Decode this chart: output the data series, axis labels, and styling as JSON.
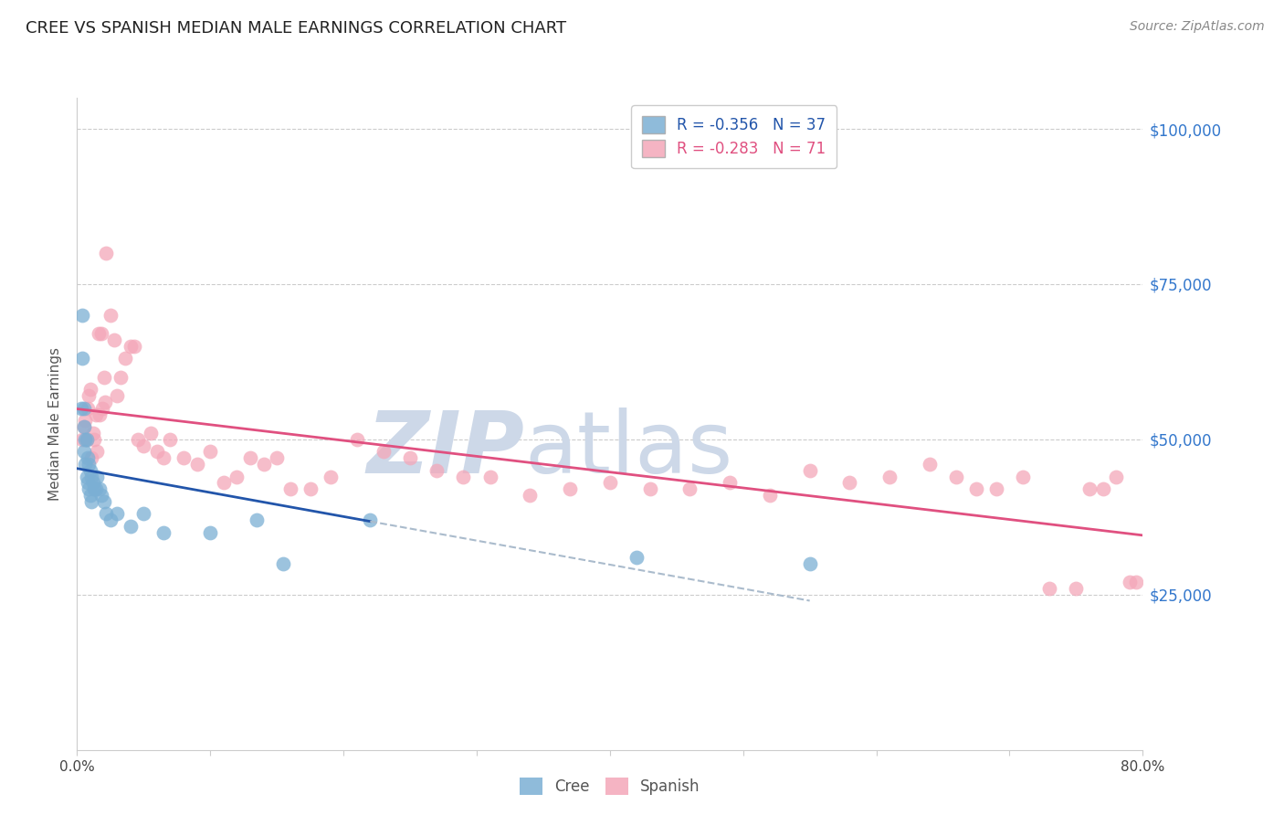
{
  "title": "CREE VS SPANISH MEDIAN MALE EARNINGS CORRELATION CHART",
  "source": "Source: ZipAtlas.com",
  "ylabel": "Median Male Earnings",
  "xmin": 0.0,
  "xmax": 0.8,
  "ymin": 0,
  "ymax": 105000,
  "yticks": [
    0,
    25000,
    50000,
    75000,
    100000
  ],
  "ytick_labels": [
    "",
    "$25,000",
    "$50,000",
    "$75,000",
    "$100,000"
  ],
  "xticks": [
    0.0,
    0.1,
    0.2,
    0.3,
    0.4,
    0.5,
    0.6,
    0.7,
    0.8
  ],
  "cree_R": -0.356,
  "cree_N": 37,
  "spanish_R": -0.283,
  "spanish_N": 71,
  "cree_color": "#7bafd4",
  "spanish_color": "#f4a7b9",
  "cree_line_color": "#2255aa",
  "spanish_line_color": "#e05080",
  "dash_color": "#aabbcc",
  "watermark_color": "#cdd8e8",
  "cree_x": [
    0.003,
    0.004,
    0.004,
    0.005,
    0.005,
    0.005,
    0.006,
    0.006,
    0.007,
    0.007,
    0.008,
    0.008,
    0.009,
    0.009,
    0.01,
    0.01,
    0.011,
    0.011,
    0.012,
    0.013,
    0.014,
    0.015,
    0.017,
    0.018,
    0.02,
    0.022,
    0.025,
    0.03,
    0.04,
    0.05,
    0.065,
    0.1,
    0.135,
    0.155,
    0.22,
    0.42,
    0.55
  ],
  "cree_y": [
    55000,
    70000,
    63000,
    55000,
    52000,
    48000,
    50000,
    46000,
    50000,
    44000,
    47000,
    43000,
    46000,
    42000,
    45000,
    41000,
    44000,
    40000,
    43000,
    42000,
    42000,
    44000,
    42000,
    41000,
    40000,
    38000,
    37000,
    38000,
    36000,
    38000,
    35000,
    35000,
    37000,
    30000,
    37000,
    31000,
    30000
  ],
  "spanish_x": [
    0.004,
    0.005,
    0.006,
    0.007,
    0.008,
    0.009,
    0.01,
    0.011,
    0.012,
    0.013,
    0.014,
    0.015,
    0.016,
    0.017,
    0.018,
    0.019,
    0.02,
    0.021,
    0.022,
    0.025,
    0.028,
    0.03,
    0.033,
    0.036,
    0.04,
    0.043,
    0.046,
    0.05,
    0.055,
    0.06,
    0.065,
    0.07,
    0.08,
    0.09,
    0.1,
    0.11,
    0.12,
    0.13,
    0.14,
    0.15,
    0.16,
    0.175,
    0.19,
    0.21,
    0.23,
    0.25,
    0.27,
    0.29,
    0.31,
    0.34,
    0.37,
    0.4,
    0.43,
    0.46,
    0.49,
    0.52,
    0.55,
    0.58,
    0.61,
    0.64,
    0.66,
    0.675,
    0.69,
    0.71,
    0.73,
    0.75,
    0.76,
    0.77,
    0.78,
    0.79,
    0.795
  ],
  "spanish_y": [
    50000,
    52000,
    53000,
    50000,
    55000,
    57000,
    58000,
    47000,
    51000,
    50000,
    54000,
    48000,
    67000,
    54000,
    67000,
    55000,
    60000,
    56000,
    80000,
    70000,
    66000,
    57000,
    60000,
    63000,
    65000,
    65000,
    50000,
    49000,
    51000,
    48000,
    47000,
    50000,
    47000,
    46000,
    48000,
    43000,
    44000,
    47000,
    46000,
    47000,
    42000,
    42000,
    44000,
    50000,
    48000,
    47000,
    45000,
    44000,
    44000,
    41000,
    42000,
    43000,
    42000,
    42000,
    43000,
    41000,
    45000,
    43000,
    44000,
    46000,
    44000,
    42000,
    42000,
    44000,
    26000,
    26000,
    42000,
    42000,
    44000,
    27000,
    27000
  ]
}
